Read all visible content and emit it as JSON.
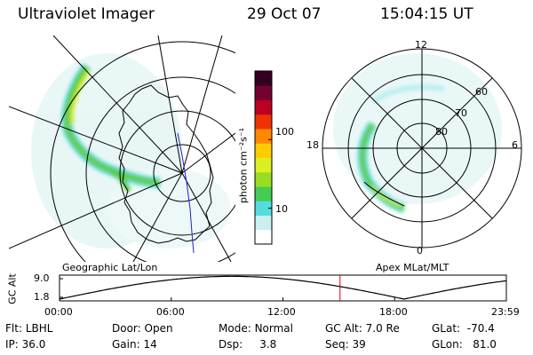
{
  "header": {
    "instrument": "Ultraviolet Imager",
    "date": "29 Oct 07",
    "time": "15:04:15 UT"
  },
  "left_panel": {
    "label": "Geographic Lat/Lon"
  },
  "right_panel": {
    "label": "Apex MLat/MLT",
    "mlt_labels": {
      "top": "12",
      "left": "18",
      "right": "6",
      "bottom": "0"
    },
    "lat_labels": [
      "60",
      "70",
      "80"
    ]
  },
  "colorbar": {
    "unit_label": "photon cm⁻²s⁻¹",
    "ticks": [
      {
        "label": "100",
        "value": 100
      },
      {
        "label": "10",
        "value": 10
      }
    ],
    "range": [
      3,
      1000
    ],
    "scale": "log",
    "colors": [
      "#ffffff",
      "#cceeee",
      "#55dddd",
      "#44cc55",
      "#99dd22",
      "#ddee22",
      "#ffcc00",
      "#ff8800",
      "#ee3300",
      "#bb0022",
      "#770033",
      "#330022"
    ]
  },
  "altitude_plot": {
    "ylabel": "GC Alt",
    "yticks": [
      "9.0",
      "1.8"
    ],
    "ylim": [
      1.8,
      9.0
    ],
    "xticks": [
      "00:00",
      "06:00",
      "12:00",
      "18:00",
      "23:59"
    ],
    "current_time": "15:04",
    "current_marker_color": "#dd0000"
  },
  "info": {
    "row1": [
      {
        "label": "Flt:",
        "value": "LBHL"
      },
      {
        "label": "Door:",
        "value": "Open"
      },
      {
        "label": "Mode:",
        "value": "Normal"
      },
      {
        "label": "GC Alt:",
        "value": "7.0 Re"
      },
      {
        "label": "GLat:",
        "value": "-70.4"
      }
    ],
    "row2": [
      {
        "label": "IP:",
        "value": "36.0"
      },
      {
        "label": "Gain:",
        "value": "14"
      },
      {
        "label": "Dsp:",
        "value": "3.8"
      },
      {
        "label": "Seq:",
        "value": "39"
      },
      {
        "label": "GLon:",
        "value": "81.0"
      }
    ]
  }
}
